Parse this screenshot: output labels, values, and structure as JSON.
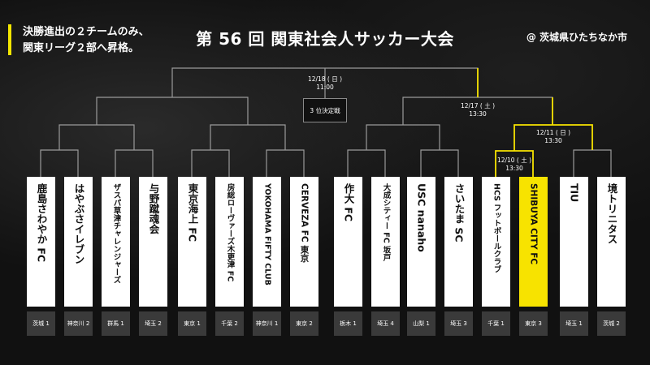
{
  "note": {
    "line1": "決勝進出の２チームのみ、",
    "line2": "関東リーグ２部へ昇格。"
  },
  "title": "第 56 回 関東社会人サッカー大会",
  "venue": "@ 茨城県ひたちなか市",
  "matches": {
    "final": {
      "date": "12/18 ( 日 )",
      "time": "11:00"
    },
    "third_place": "3 位決定戦",
    "semi_right": {
      "date": "12/17 ( 土 )",
      "time": "13:30"
    },
    "qf_right": {
      "date": "12/11 ( 日 )",
      "time": "13:30"
    },
    "r1_right": {
      "date": "12/10 ( 土 )",
      "time": "13:30"
    }
  },
  "teams": [
    {
      "name": "鹿島さわやか FC",
      "pref": "茨城 1"
    },
    {
      "name": "はやぶさイレブン",
      "pref": "神奈川 2"
    },
    {
      "name": "ザスパ草津チャレンジャーズ",
      "pref": "群馬 1"
    },
    {
      "name": "与野蹴魂会",
      "pref": "埼玉 2"
    },
    {
      "name": "東京海上 FC",
      "pref": "東京 1"
    },
    {
      "name": "房総ローヴァーズ木更津 FC",
      "pref": "千葉 2"
    },
    {
      "name": "YOKOHAMA FIFTY CLUB",
      "pref": "神奈川 1"
    },
    {
      "name": "CERVEZA FC 東京",
      "pref": "東京 2"
    },
    {
      "name": "作大 FC",
      "pref": "栃木 1"
    },
    {
      "name": "大成シティー FC 坂戸",
      "pref": "埼玉 4"
    },
    {
      "name": "USC nanaho",
      "pref": "山梨 1"
    },
    {
      "name": "さいたま SC",
      "pref": "埼玉 3"
    },
    {
      "name": "HCS フットボールクラブ",
      "pref": "千葉 1"
    },
    {
      "name": "SHIBUYA CITY FC",
      "pref": "東京 3"
    },
    {
      "name": "TIU",
      "pref": "埼玉 1"
    },
    {
      "name": "境トリニタス",
      "pref": "茨城 2"
    }
  ],
  "colors": {
    "accent": "#f7e300",
    "background": "#111111",
    "card": "#ffffff",
    "pref_box": "#3a3a3a",
    "line": "#9a9a9a"
  }
}
